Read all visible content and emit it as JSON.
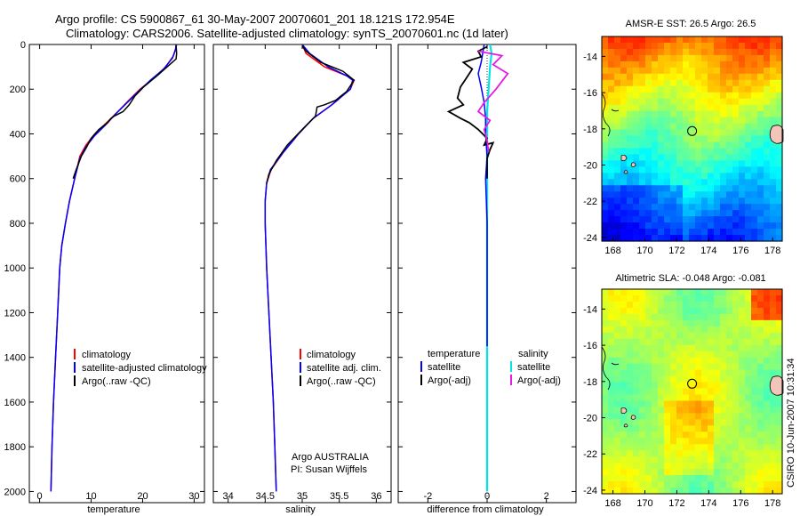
{
  "header": {
    "line1": "Argo profile: CS 5900867_61 30-May-2007 20070601_201 18.121S 172.954E",
    "line2": "Climatology: CARS2006. Satellite-adjusted climatology: synTS_20070601.nc (1d later)"
  },
  "colors": {
    "climatology": "#ff0000",
    "satellite": "#0000ff",
    "argo": "#000000",
    "salinity_satellite": "#00e5e5",
    "salinity_argo": "#e619e6"
  },
  "depth_axis": {
    "ylim": [
      0,
      2050
    ],
    "ticks": [
      "0",
      "200",
      "400",
      "600",
      "800",
      "1000",
      "1200",
      "1400",
      "1600",
      "1800",
      "2000"
    ]
  },
  "chart_data": [
    {
      "type": "line",
      "name": "temperature",
      "xlabel": "temperature",
      "xlim": [
        -2,
        32
      ],
      "xticks": [
        "0",
        "10",
        "20",
        "30"
      ],
      "y_axis": "depth (inverted)",
      "legend": {
        "position": "lower-middle",
        "entries": [
          "climatology",
          "satellite-adjusted climatology",
          "Argo(..raw -QC)"
        ]
      },
      "series": [
        {
          "name": "climatology",
          "color": "#ff0000",
          "points": [
            [
              26.6,
              0
            ],
            [
              26.4,
              20
            ],
            [
              26.0,
              50
            ],
            [
              24.5,
              100
            ],
            [
              22.2,
              150
            ],
            [
              19.5,
              200
            ],
            [
              17.3,
              250
            ],
            [
              15.2,
              300
            ],
            [
              13.0,
              350
            ],
            [
              10.7,
              400
            ],
            [
              9.0,
              450
            ],
            [
              7.8,
              500
            ],
            [
              6.8,
              600
            ],
            [
              5.8,
              700
            ],
            [
              5.0,
              800
            ],
            [
              4.3,
              900
            ],
            [
              3.9,
              1000
            ],
            [
              3.5,
              1200
            ],
            [
              3.1,
              1400
            ],
            [
              2.7,
              1600
            ],
            [
              2.4,
              1800
            ],
            [
              2.2,
              2000
            ]
          ]
        },
        {
          "name": "satellite-adjusted climatology",
          "color": "#0000ff",
          "points": [
            [
              26.5,
              0
            ],
            [
              26.4,
              20
            ],
            [
              25.8,
              60
            ],
            [
              24.1,
              110
            ],
            [
              21.5,
              160
            ],
            [
              19.2,
              210
            ],
            [
              17.0,
              260
            ],
            [
              14.8,
              310
            ],
            [
              12.8,
              360
            ],
            [
              10.6,
              410
            ],
            [
              8.9,
              460
            ],
            [
              7.8,
              510
            ],
            [
              6.8,
              600
            ],
            [
              5.8,
              700
            ],
            [
              5.0,
              800
            ],
            [
              4.3,
              900
            ],
            [
              3.9,
              1000
            ],
            [
              3.5,
              1200
            ],
            [
              3.1,
              1400
            ],
            [
              2.7,
              1600
            ],
            [
              2.4,
              1800
            ],
            [
              2.2,
              2000
            ]
          ]
        },
        {
          "name": "Argo(..raw -QC)",
          "color": "#000000",
          "points": [
            [
              26.5,
              5
            ],
            [
              26.6,
              40
            ],
            [
              26.5,
              65
            ],
            [
              25.0,
              95
            ],
            [
              22.8,
              140
            ],
            [
              20.2,
              190
            ],
            [
              18.5,
              230
            ],
            [
              17.4,
              270
            ],
            [
              16.2,
              300
            ],
            [
              14.5,
              320
            ],
            [
              13.9,
              330
            ],
            [
              13.2,
              350
            ],
            [
              11.5,
              380
            ],
            [
              10.0,
              420
            ],
            [
              9.1,
              460
            ],
            [
              8.1,
              500
            ],
            [
              7.1,
              560
            ],
            [
              6.5,
              600
            ]
          ]
        }
      ]
    },
    {
      "type": "line",
      "name": "salinity",
      "xlabel": "salinity",
      "xlim": [
        33.8,
        36.2
      ],
      "xticks": [
        "34",
        "34.5",
        "35",
        "35.5",
        "36"
      ],
      "y_axis": "depth (inverted)",
      "legend": {
        "position": "lower-right",
        "entries": [
          "climatology",
          "satellite adj. clim.",
          "Argo(..raw -QC)"
        ]
      },
      "annotation": {
        "line1": "Argo AUSTRALIA",
        "line2": "PI: Susan Wijffels"
      },
      "series": [
        {
          "name": "climatology",
          "color": "#ff0000",
          "points": [
            [
              35.0,
              0
            ],
            [
              35.05,
              40
            ],
            [
              35.3,
              100
            ],
            [
              35.6,
              140
            ],
            [
              35.7,
              160
            ],
            [
              35.65,
              200
            ],
            [
              35.4,
              270
            ],
            [
              35.15,
              330
            ],
            [
              34.95,
              400
            ],
            [
              34.75,
              480
            ],
            [
              34.58,
              560
            ],
            [
              34.52,
              620
            ],
            [
              34.5,
              700
            ],
            [
              34.5,
              800
            ],
            [
              34.52,
              1000
            ],
            [
              34.55,
              1200
            ],
            [
              34.58,
              1400
            ],
            [
              34.61,
              1600
            ],
            [
              34.63,
              1800
            ],
            [
              34.65,
              2000
            ]
          ]
        },
        {
          "name": "satellite adj. clim.",
          "color": "#0000ff",
          "points": [
            [
              35.0,
              0
            ],
            [
              35.1,
              40
            ],
            [
              35.35,
              100
            ],
            [
              35.6,
              140
            ],
            [
              35.68,
              160
            ],
            [
              35.65,
              200
            ],
            [
              35.4,
              270
            ],
            [
              35.15,
              330
            ],
            [
              34.95,
              400
            ],
            [
              34.75,
              480
            ],
            [
              34.57,
              560
            ],
            [
              34.52,
              620
            ],
            [
              34.5,
              700
            ],
            [
              34.5,
              800
            ],
            [
              34.52,
              1000
            ],
            [
              34.55,
              1200
            ],
            [
              34.58,
              1400
            ],
            [
              34.61,
              1600
            ],
            [
              34.63,
              1800
            ],
            [
              34.65,
              2000
            ]
          ]
        },
        {
          "name": "Argo(..raw -QC)",
          "color": "#000000",
          "points": [
            [
              35.0,
              5
            ],
            [
              35.05,
              30
            ],
            [
              35.25,
              80
            ],
            [
              35.55,
              120
            ],
            [
              35.7,
              160
            ],
            [
              35.6,
              210
            ],
            [
              35.45,
              250
            ],
            [
              35.3,
              270
            ],
            [
              35.2,
              280
            ],
            [
              35.18,
              320
            ],
            [
              35.0,
              380
            ],
            [
              34.8,
              450
            ],
            [
              34.65,
              520
            ],
            [
              34.55,
              580
            ],
            [
              34.52,
              620
            ]
          ]
        }
      ]
    },
    {
      "type": "line",
      "name": "difference from climatology",
      "xlabel": "difference from climatology",
      "xlim": [
        -3,
        3
      ],
      "xticks": [
        "-2",
        "0",
        "2"
      ],
      "y_axis": "depth (inverted)",
      "legend": {
        "position": "lower-middle",
        "heading_temperature": "temperature",
        "heading_salinity": "salinity",
        "entries_temperature": [
          "satellite",
          "Argo(-adj)"
        ],
        "entries_salinity": [
          "satellite",
          "Argo(-adj)"
        ]
      },
      "series": [
        {
          "name": "temperature satellite",
          "color": "#0000ff",
          "points": [
            [
              -0.1,
              0
            ],
            [
              -0.15,
              40
            ],
            [
              -0.2,
              80
            ],
            [
              -0.3,
              130
            ],
            [
              -0.2,
              190
            ],
            [
              -0.1,
              260
            ],
            [
              -0.05,
              330
            ],
            [
              -0.05,
              400
            ],
            [
              0.0,
              500
            ],
            [
              -0.05,
              600
            ],
            [
              0.0,
              800
            ],
            [
              0.0,
              1100
            ],
            [
              0.0,
              1350
            ]
          ]
        },
        {
          "name": "temperature Argo(-adj)",
          "color": "#000000",
          "points": [
            [
              0.0,
              10
            ],
            [
              -0.3,
              30
            ],
            [
              -0.2,
              55
            ],
            [
              -0.8,
              80
            ],
            [
              -0.5,
              110
            ],
            [
              -0.7,
              150
            ],
            [
              -0.9,
              190
            ],
            [
              -1.0,
              240
            ],
            [
              -0.8,
              270
            ],
            [
              -1.3,
              300
            ],
            [
              -0.9,
              330
            ],
            [
              -0.6,
              350
            ],
            [
              -0.3,
              380
            ],
            [
              0.0,
              420
            ],
            [
              -0.1,
              450
            ],
            [
              0.2,
              440
            ],
            [
              0.1,
              470
            ],
            [
              0.0,
              510
            ],
            [
              0.0,
              600
            ]
          ]
        },
        {
          "name": "salinity satellite",
          "color": "#00e5e5",
          "points": [
            [
              0.1,
              0
            ],
            [
              0.15,
              40
            ],
            [
              0.1,
              100
            ],
            [
              0.05,
              200
            ],
            [
              0.0,
              300
            ],
            [
              0.0,
              500
            ],
            [
              0.0,
              1000
            ],
            [
              0.0,
              1500
            ],
            [
              0.0,
              2000
            ]
          ]
        },
        {
          "name": "salinity Argo(-adj)",
          "color": "#e619e6",
          "points": [
            [
              -0.3,
              30
            ],
            [
              0.5,
              50
            ],
            [
              0.2,
              90
            ],
            [
              0.7,
              130
            ],
            [
              0.3,
              200
            ],
            [
              -0.1,
              260
            ],
            [
              -0.3,
              300
            ],
            [
              0.1,
              340
            ],
            [
              -0.1,
              380
            ],
            [
              0.0,
              430
            ],
            [
              0.05,
              480
            ]
          ]
        }
      ]
    },
    {
      "type": "heatmap",
      "name": "AMSR-E SST",
      "title": "AMSR-E SST: 26.5 Argo: 26.5",
      "xlim": [
        167.3,
        178.6
      ],
      "ylim": [
        -24.2,
        -12.9
      ],
      "xticks": [
        "168",
        "170",
        "172",
        "174",
        "176",
        "178"
      ],
      "yticks": [
        "-14",
        "-16",
        "-18",
        "-20",
        "-22",
        "-24"
      ],
      "profile_location": {
        "lon": 172.954,
        "lat": -18.121
      }
    },
    {
      "type": "heatmap",
      "name": "Altimetric SLA",
      "title": "Altimetric SLA: -0.048 Argo: -0.081",
      "xlim": [
        167.3,
        178.6
      ],
      "ylim": [
        -24.2,
        -12.9
      ],
      "xticks": [
        "168",
        "170",
        "172",
        "174",
        "176",
        "178"
      ],
      "yticks": [
        "-14",
        "-16",
        "-18",
        "-20",
        "-22",
        "-24"
      ],
      "profile_location": {
        "lon": 172.954,
        "lat": -18.121
      }
    }
  ],
  "footer": {
    "stamp": "CSIRO  10-Jun-2007 10:31:34"
  }
}
